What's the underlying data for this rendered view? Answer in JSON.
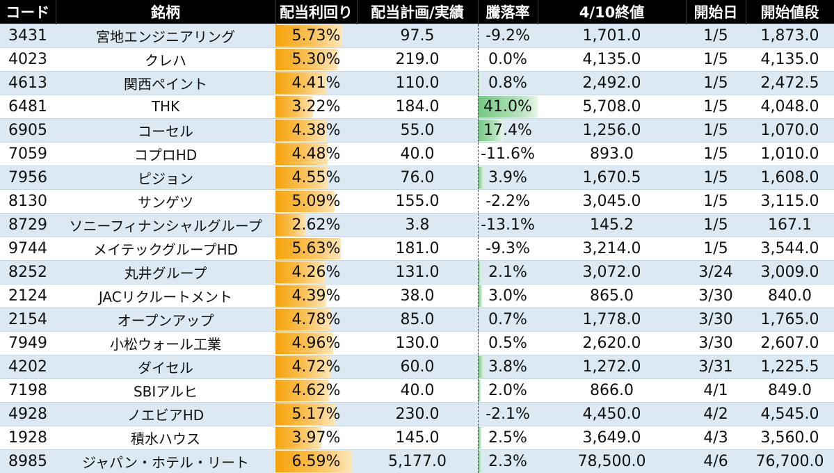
{
  "headers": [
    "コード",
    "銘柄",
    "配当利回り",
    "配当計画/実績",
    "騰落率",
    "4/10終値",
    "開始日",
    "開始値段"
  ],
  "colors": {
    "header_bg": "#000000",
    "row_alt": "#dce9f3",
    "yield_bar": "#f6a30a",
    "negative_bar": "#e21b1b",
    "positive_bar": "#73c883"
  },
  "rows": [
    {
      "code": "3431",
      "name": "宮地エンジニアリング",
      "yield": "5.73%",
      "yield_value": 5.73,
      "dividend": "97.5",
      "change": "-9.2%",
      "change_value": -9.2,
      "close": "1,701.0",
      "start_date": "1/5",
      "start_price": "1,873.0"
    },
    {
      "code": "4023",
      "name": "クレハ",
      "yield": "5.30%",
      "yield_value": 5.3,
      "dividend": "219.0",
      "change": "0.0%",
      "change_value": 0.0,
      "close": "4,135.0",
      "start_date": "1/5",
      "start_price": "4,135.0"
    },
    {
      "code": "4613",
      "name": "関西ペイント",
      "yield": "4.41%",
      "yield_value": 4.41,
      "dividend": "110.0",
      "change": "0.8%",
      "change_value": 0.8,
      "close": "2,492.0",
      "start_date": "1/5",
      "start_price": "2,472.5"
    },
    {
      "code": "6481",
      "name": "THK",
      "yield": "3.22%",
      "yield_value": 3.22,
      "dividend": "184.0",
      "change": "41.0%",
      "change_value": 41.0,
      "close": "5,708.0",
      "start_date": "1/5",
      "start_price": "4,048.0"
    },
    {
      "code": "6905",
      "name": "コーセル",
      "yield": "4.38%",
      "yield_value": 4.38,
      "dividend": "55.0",
      "change": "17.4%",
      "change_value": 17.4,
      "close": "1,256.0",
      "start_date": "1/5",
      "start_price": "1,070.0"
    },
    {
      "code": "7059",
      "name": "コプロHD",
      "yield": "4.48%",
      "yield_value": 4.48,
      "dividend": "40.0",
      "change": "-11.6%",
      "change_value": -11.6,
      "close": "893.0",
      "start_date": "1/5",
      "start_price": "1,010.0"
    },
    {
      "code": "7956",
      "name": "ピジョン",
      "yield": "4.55%",
      "yield_value": 4.55,
      "dividend": "76.0",
      "change": "3.9%",
      "change_value": 3.9,
      "close": "1,670.5",
      "start_date": "1/5",
      "start_price": "1,608.0"
    },
    {
      "code": "8130",
      "name": "サンゲツ",
      "yield": "5.09%",
      "yield_value": 5.09,
      "dividend": "155.0",
      "change": "-2.2%",
      "change_value": -2.2,
      "close": "3,045.0",
      "start_date": "1/5",
      "start_price": "3,115.0"
    },
    {
      "code": "8729",
      "name": "ソニーフィナンシャルグループ",
      "yield": "2.62%",
      "yield_value": 2.62,
      "dividend": "3.8",
      "change": "-13.1%",
      "change_value": -13.1,
      "close": "145.2",
      "start_date": "1/5",
      "start_price": "167.1"
    },
    {
      "code": "9744",
      "name": "メイテックグループHD",
      "yield": "5.63%",
      "yield_value": 5.63,
      "dividend": "181.0",
      "change": "-9.3%",
      "change_value": -9.3,
      "close": "3,214.0",
      "start_date": "1/5",
      "start_price": "3,544.0"
    },
    {
      "code": "8252",
      "name": "丸井グループ",
      "yield": "4.26%",
      "yield_value": 4.26,
      "dividend": "131.0",
      "change": "2.1%",
      "change_value": 2.1,
      "close": "3,072.0",
      "start_date": "3/24",
      "start_price": "3,009.0"
    },
    {
      "code": "2124",
      "name": "JACリクルートメント",
      "yield": "4.39%",
      "yield_value": 4.39,
      "dividend": "38.0",
      "change": "3.0%",
      "change_value": 3.0,
      "close": "865.0",
      "start_date": "3/30",
      "start_price": "840.0"
    },
    {
      "code": "2154",
      "name": "オープンアップ",
      "yield": "4.78%",
      "yield_value": 4.78,
      "dividend": "85.0",
      "change": "0.7%",
      "change_value": 0.7,
      "close": "1,778.0",
      "start_date": "3/30",
      "start_price": "1,765.0"
    },
    {
      "code": "7949",
      "name": "小松ウォール工業",
      "yield": "4.96%",
      "yield_value": 4.96,
      "dividend": "130.0",
      "change": "0.5%",
      "change_value": 0.5,
      "close": "2,620.0",
      "start_date": "3/30",
      "start_price": "2,607.0"
    },
    {
      "code": "4202",
      "name": "ダイセル",
      "yield": "4.72%",
      "yield_value": 4.72,
      "dividend": "60.0",
      "change": "3.8%",
      "change_value": 3.8,
      "close": "1,272.0",
      "start_date": "3/31",
      "start_price": "1,225.5"
    },
    {
      "code": "7198",
      "name": "SBIアルヒ",
      "yield": "4.62%",
      "yield_value": 4.62,
      "dividend": "40.0",
      "change": "2.0%",
      "change_value": 2.0,
      "close": "866.0",
      "start_date": "4/1",
      "start_price": "849.0"
    },
    {
      "code": "4928",
      "name": "ノエビアHD",
      "yield": "5.17%",
      "yield_value": 5.17,
      "dividend": "230.0",
      "change": "-2.1%",
      "change_value": -2.1,
      "close": "4,450.0",
      "start_date": "4/2",
      "start_price": "4,545.0"
    },
    {
      "code": "1928",
      "name": "積水ハウス",
      "yield": "3.97%",
      "yield_value": 3.97,
      "dividend": "145.0",
      "change": "2.5%",
      "change_value": 2.5,
      "close": "3,649.0",
      "start_date": "4/3",
      "start_price": "3,560.0"
    },
    {
      "code": "8985",
      "name": "ジャパン・ホテル・リート",
      "yield": "6.59%",
      "yield_value": 6.59,
      "dividend": "5,177.0",
      "change": "2.3%",
      "change_value": 2.3,
      "close": "78,500.0",
      "start_date": "4/6",
      "start_price": "76,700.0"
    }
  ]
}
